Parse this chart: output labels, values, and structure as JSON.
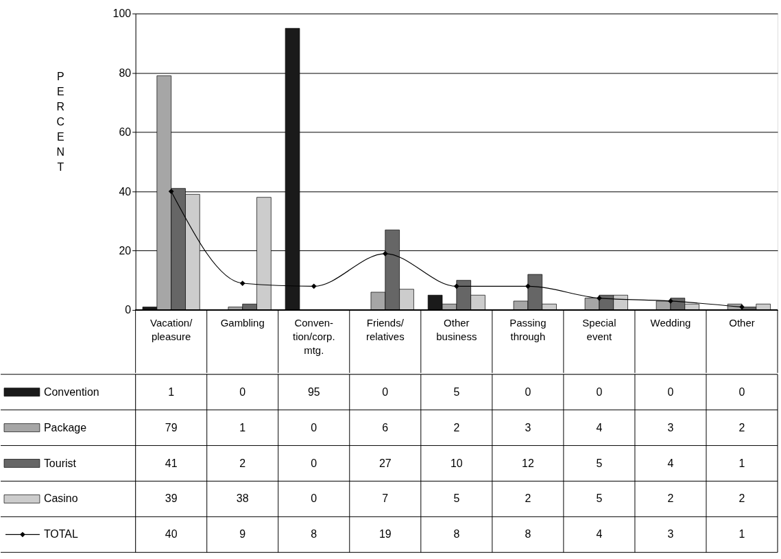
{
  "chart_data": {
    "type": "bar",
    "ylabel": "PERCENT",
    "categories": [
      "Vacation/\npleasure",
      "Gambling",
      "Conven-\ntion/corp.\nmtg.",
      "Friends/\nrelatives",
      "Other\nbusiness",
      "Passing\nthrough",
      "Special\nevent",
      "Wedding",
      "Other"
    ],
    "series": [
      {
        "name": "Convention",
        "color": "#1a1a1a",
        "values": [
          1,
          0,
          95,
          0,
          5,
          0,
          0,
          0,
          0
        ]
      },
      {
        "name": "Package",
        "color": "#a6a6a6",
        "values": [
          79,
          1,
          0,
          6,
          2,
          3,
          4,
          3,
          2
        ]
      },
      {
        "name": "Tourist",
        "color": "#666666",
        "values": [
          41,
          2,
          0,
          27,
          10,
          12,
          5,
          4,
          1
        ]
      },
      {
        "name": "Casino",
        "color": "#cccccc",
        "values": [
          39,
          38,
          0,
          7,
          5,
          2,
          5,
          2,
          2
        ]
      },
      {
        "name": "TOTAL",
        "color": "#000000",
        "type": "line",
        "values": [
          40,
          9,
          8,
          19,
          8,
          8,
          4,
          3,
          1
        ]
      }
    ],
    "ylim": [
      0,
      100
    ],
    "yticks": [
      0,
      20,
      40,
      60,
      80,
      100
    ],
    "grid": "y",
    "marker": "diamond",
    "line_style": "solid",
    "data_labels": true,
    "legend": "bottom left"
  }
}
